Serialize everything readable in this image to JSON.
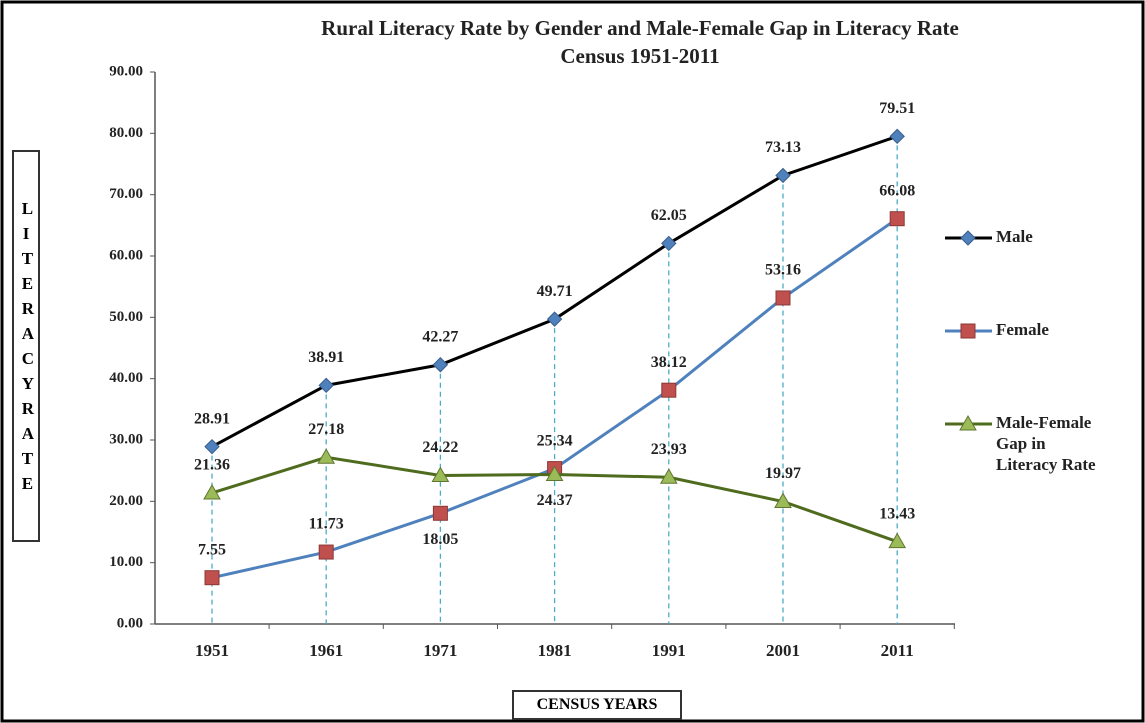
{
  "chart_data": {
    "type": "line",
    "title": "Rural Literacy Rate by Gender and Male-Female Gap in Literacy Rate",
    "subtitle": "Census 1951-2011",
    "y_label": "LITERACY RATE",
    "x_label": "CENSUS YEARS",
    "categories": [
      "1951",
      "1961",
      "1971",
      "1981",
      "1991",
      "2001",
      "2011"
    ],
    "series": [
      {
        "name": "Male",
        "color": "#000000",
        "marker": "diamond",
        "marker_color": "#4f81bd",
        "values": [
          28.91,
          38.91,
          42.27,
          49.71,
          62.05,
          73.13,
          79.51
        ]
      },
      {
        "name": "Female",
        "color": "#4f81bd",
        "marker": "square",
        "marker_color": "#c0504d",
        "values": [
          7.55,
          11.73,
          18.05,
          25.34,
          38.12,
          53.16,
          66.08
        ]
      },
      {
        "name": "Male-Female Gap in Literacy Rate",
        "color": "#4f6b1e",
        "marker": "triangle",
        "marker_color": "#9bbb59",
        "values": [
          21.36,
          27.18,
          24.22,
          24.37,
          23.93,
          19.97,
          13.43
        ]
      }
    ],
    "ylim": [
      0,
      90
    ],
    "yticks": [
      {
        "value": 0,
        "label": "0.00"
      },
      {
        "value": 10,
        "label": "10.00"
      },
      {
        "value": 20,
        "label": "20.00"
      },
      {
        "value": 30,
        "label": "30.00"
      },
      {
        "value": 40,
        "label": "40.00"
      },
      {
        "value": 50,
        "label": "50.00"
      },
      {
        "value": 60,
        "label": "60.00"
      },
      {
        "value": 70,
        "label": "70.00"
      },
      {
        "value": 80,
        "label": "80.00"
      },
      {
        "value": 90,
        "label": "90.00"
      }
    ],
    "drop_lines": true,
    "legend": "right"
  }
}
